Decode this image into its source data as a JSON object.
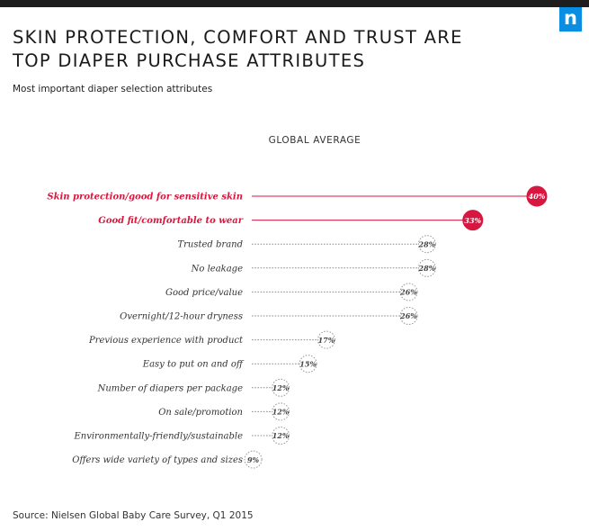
{
  "header": {
    "title_line1": "SKIN PROTECTION, COMFORT AND TRUST ARE",
    "title_line2": "TOP DIAPER PURCHASE ATTRIBUTES",
    "subtitle": "Most important diaper selection attributes",
    "logo_letter": "n"
  },
  "colors": {
    "accent": "#d7173f",
    "top_bar": "#1e1e1e",
    "logo": "#0a8ee3",
    "neutral": "#9a9a9a"
  },
  "chart_data": {
    "type": "bar",
    "title": "GLOBAL AVERAGE",
    "categories": [
      "Skin protection/good for sensitive skin",
      "Good fit/comfortable to wear",
      "Trusted brand",
      "No leakage",
      "Good price/value",
      "Overnight/12-hour dryness",
      "Previous experience with product",
      "Easy to put on and off",
      "Number of diapers per package",
      "On sale/promotion",
      "Environmentally-friendly/sustainable",
      "Offers wide variety of types and sizes"
    ],
    "values": [
      40,
      33,
      28,
      28,
      26,
      26,
      17,
      15,
      12,
      12,
      12,
      9
    ],
    "value_labels": [
      "40%",
      "33%",
      "28%",
      "28%",
      "26%",
      "26%",
      "17%",
      "15%",
      "12%",
      "12%",
      "12%",
      "9%"
    ],
    "highlighted": [
      0,
      1
    ],
    "xlim": [
      0,
      40
    ],
    "unit": "%",
    "orientation": "horizontal"
  },
  "footer": {
    "source": "Source: Nielsen Global Baby Care Survey, Q1 2015"
  }
}
